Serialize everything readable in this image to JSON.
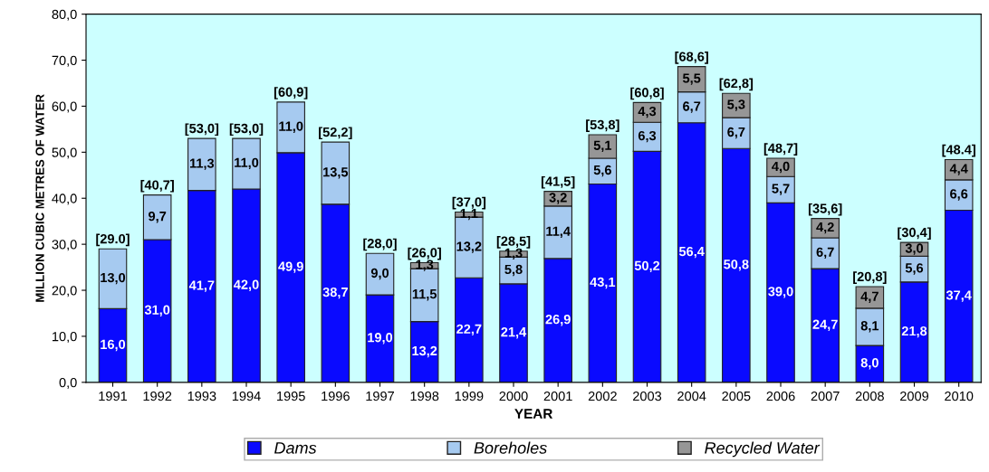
{
  "chart_data": {
    "type": "bar",
    "stacked": true,
    "xlabel": "YEAR",
    "ylabel": "MILLION CUBIC METRES OF WATER",
    "categories": [
      "1991",
      "1992",
      "1993",
      "1994",
      "1995",
      "1996",
      "1997",
      "1998",
      "1999",
      "2000",
      "2001",
      "2002",
      "2003",
      "2004",
      "2005",
      "2006",
      "2007",
      "2008",
      "2009",
      "2010"
    ],
    "series": [
      {
        "name": "Dams",
        "color": "#0a0aff",
        "values": [
          16.0,
          31.0,
          41.7,
          42.0,
          49.9,
          38.7,
          19.0,
          13.2,
          22.7,
          21.4,
          26.9,
          43.1,
          50.2,
          56.4,
          50.8,
          39.0,
          24.7,
          8.0,
          21.8,
          37.4
        ],
        "value_labels": [
          "16,0",
          "31,0",
          "41,7",
          "42,0",
          "49,9",
          "38,7",
          "19,0",
          "13,2",
          "22,7",
          "21,4",
          "26,9",
          "43,1",
          "50,2",
          "56,4",
          "50,8",
          "39,0",
          "24,7",
          "8,0",
          "21,8",
          "37,4"
        ]
      },
      {
        "name": "Boreholes",
        "color": "#a6caf0",
        "values": [
          13.0,
          9.7,
          11.3,
          11.0,
          11.0,
          13.5,
          9.0,
          11.5,
          13.2,
          5.8,
          11.4,
          5.6,
          6.3,
          6.7,
          6.7,
          5.7,
          6.7,
          8.1,
          5.6,
          6.6
        ],
        "value_labels": [
          "13,0",
          "9,7",
          "11,3",
          "11,0",
          "11,0",
          "13,5",
          "9,0",
          "11,5",
          "13,2",
          "5,8",
          "11,4",
          "5,6",
          "6,3",
          "6,7",
          "6,7",
          "5,7",
          "6,7",
          "8,1",
          "5,6",
          "6,6"
        ]
      },
      {
        "name": "Recycled Water",
        "color": "#969696",
        "values": [
          null,
          null,
          null,
          null,
          null,
          null,
          null,
          1.3,
          1.1,
          1.3,
          3.2,
          5.1,
          4.3,
          5.5,
          5.3,
          4.0,
          4.2,
          4.7,
          3.0,
          4.4
        ],
        "value_labels": [
          null,
          null,
          null,
          null,
          null,
          null,
          null,
          "1,3",
          "1,1",
          "1,3",
          "3,2",
          "5,1",
          "4,3",
          "5,5",
          "5,3",
          "4,0",
          "4,2",
          "4,7",
          "3,0",
          "4,4"
        ]
      }
    ],
    "totals": [
      "[29.0]",
      "[40,7]",
      "[53,0]",
      "[53,0]",
      "[60,9]",
      "[52,2]",
      "[28,0]",
      "[26,0]",
      "[37,0]",
      "[28,5]",
      "[41,5]",
      "[53,8]",
      "[60,8]",
      "[68,6]",
      "[62,8]",
      "[48,7]",
      "[35,6]",
      "[20,8]",
      "[30,4]",
      "[48.4]"
    ],
    "ylim": [
      0,
      80
    ],
    "yticks": [
      {
        "value": 0,
        "label": "0,0"
      },
      {
        "value": 10,
        "label": "10,0"
      },
      {
        "value": 20,
        "label": "20,0"
      },
      {
        "value": 30,
        "label": "30,0"
      },
      {
        "value": 40,
        "label": "40,0"
      },
      {
        "value": 50,
        "label": "50,0"
      },
      {
        "value": 60,
        "label": "60,0"
      },
      {
        "value": 70,
        "label": "70,0"
      },
      {
        "value": 80,
        "label": "80,0"
      }
    ],
    "grid": false,
    "legend": "bottom"
  }
}
